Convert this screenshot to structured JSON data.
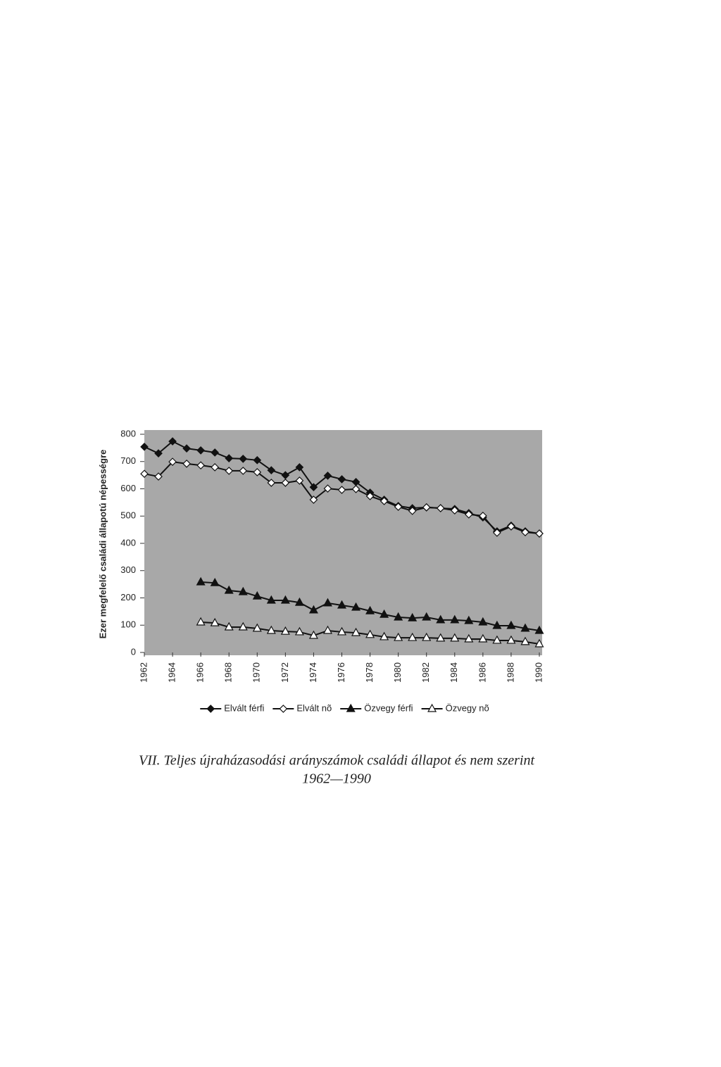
{
  "chart_data": {
    "type": "line",
    "y_label": "Ezer megfelelő családi állapotú népességre",
    "caption": [
      "VII. Teljes újraházasodási arányszámok családi állapot és nem szerint",
      "1962—1990"
    ],
    "x": [
      1962,
      1963,
      1964,
      1965,
      1966,
      1967,
      1968,
      1969,
      1970,
      1971,
      1972,
      1973,
      1974,
      1975,
      1976,
      1977,
      1978,
      1979,
      1980,
      1981,
      1982,
      1983,
      1984,
      1985,
      1986,
      1987,
      1988,
      1989,
      1990
    ],
    "xlim": [
      1962,
      1990
    ],
    "xticks": [
      1962,
      1964,
      1966,
      1968,
      1970,
      1972,
      1974,
      1976,
      1978,
      1980,
      1982,
      1984,
      1986,
      1988,
      1990
    ],
    "ylim": [
      0,
      800
    ],
    "yticks": [
      0,
      100,
      200,
      300,
      400,
      500,
      600,
      700,
      800
    ],
    "plot_background": "#a8a8a8",
    "legend": "bottom",
    "series": [
      {
        "name": "Elvált férfi",
        "color": "#111111",
        "marker": "diamond",
        "filled": true,
        "values": [
          754,
          730,
          774,
          748,
          741,
          733,
          712,
          710,
          705,
          668,
          650,
          679,
          606,
          648,
          635,
          625,
          586,
          560,
          537,
          529,
          532,
          529,
          526,
          511,
          495,
          444,
          465,
          444,
          436
        ]
      },
      {
        "name": "Elvált nõ",
        "color": "#111111",
        "marker": "diamond",
        "filled": false,
        "values": [
          655,
          645,
          699,
          692,
          686,
          679,
          666,
          666,
          661,
          622,
          622,
          630,
          560,
          601,
          596,
          599,
          573,
          555,
          534,
          519,
          532,
          529,
          521,
          506,
          501,
          439,
          462,
          441,
          436
        ]
      },
      {
        "name": "Özvegy férfi",
        "color": "#111111",
        "marker": "triangle",
        "filled": true,
        "values": [
          null,
          null,
          null,
          null,
          258,
          255,
          227,
          222,
          206,
          191,
          191,
          183,
          155,
          181,
          173,
          165,
          152,
          139,
          129,
          126,
          129,
          119,
          119,
          116,
          111,
          98,
          98,
          88,
          80
        ]
      },
      {
        "name": "Özvegy nõ",
        "color": "#111111",
        "marker": "triangle",
        "filled": false,
        "values": [
          null,
          null,
          null,
          null,
          111,
          108,
          93,
          93,
          88,
          80,
          77,
          75,
          62,
          80,
          75,
          72,
          65,
          57,
          54,
          54,
          54,
          52,
          52,
          49,
          49,
          44,
          44,
          39,
          31
        ]
      }
    ]
  }
}
